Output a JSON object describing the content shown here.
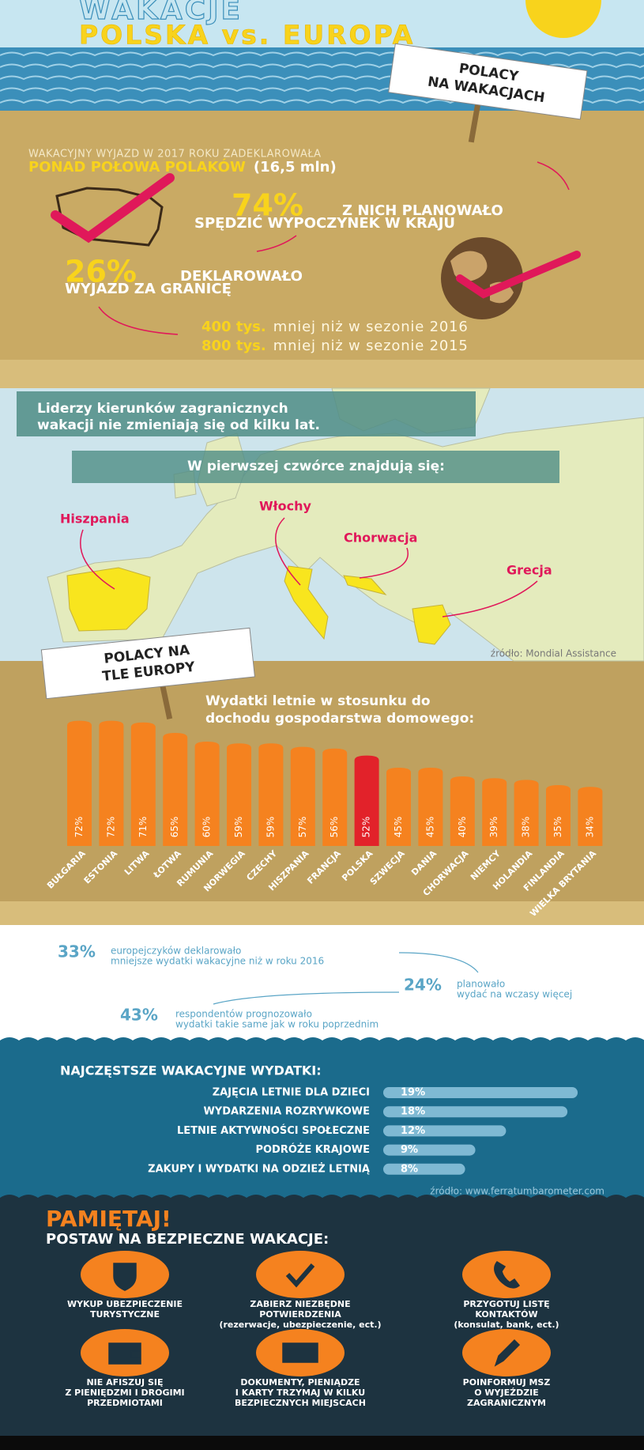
{
  "header": {
    "title": "WAKACJE",
    "subtitle": "POLSKA vs. EUROPA",
    "sign": [
      "POLACY",
      "NA WAKACJACH"
    ]
  },
  "poland": {
    "intro": "WAKACYJNY WYJAZD W 2017 ROKU ZADEKLAROWAŁA",
    "highlight": "PONAD POŁOWA POLAKÓW",
    "count": "(16,5 mln)",
    "domestic_pct": "74%",
    "domestic_text": [
      "Z NICH PLANOWAŁO",
      "SPĘDZIĆ WYPOCZYNEK W KRAJU"
    ],
    "abroad_pct": "26%",
    "abroad_text": [
      "DEKLAROWAŁO",
      "WYJAZD ZA GRANICĘ"
    ],
    "comparisons": [
      {
        "amount": "400 tys.",
        "text": "mniej niż w sezonie 2016"
      },
      {
        "amount": "800 tys.",
        "text": "mniej niż w sezonie 2015"
      }
    ]
  },
  "map": {
    "heading": [
      "Liderzy kierunków zagranicznych",
      "wakacji nie zmieniają się od kilku lat."
    ],
    "subheading": "W pierwszej czwórce znajdują się:",
    "countries": [
      "Hiszpania",
      "Włochy",
      "Chorwacja",
      "Grecja"
    ],
    "source": "źródło: Mondial Assistance"
  },
  "europe_sign": [
    "POLACY NA",
    "TLE EUROPY"
  ],
  "chart_data": [
    {
      "type": "bar",
      "title": [
        "Wydatki letnie w stosunku do",
        "dochodu gospodarstwa domowego:"
      ],
      "categories": [
        "BUŁGARIA",
        "ESTONIA",
        "LITWA",
        "ŁOTWA",
        "RUMUNIA",
        "NORWEGIA",
        "CZECHY",
        "HISZPANIA",
        "FRANCJA",
        "POLSKA",
        "SZWECJA",
        "DANIA",
        "CHORWACJA",
        "NIEMCY",
        "HOLANDIA",
        "FINLANDIA",
        "WIELKA BRYTANIA"
      ],
      "values": [
        72,
        72,
        71,
        65,
        60,
        59,
        59,
        57,
        56,
        52,
        45,
        45,
        40,
        39,
        38,
        35,
        34
      ],
      "value_labels": [
        "72%",
        "72%",
        "71%",
        "65%",
        "60%",
        "59%",
        "59%",
        "57%",
        "56%",
        "52%",
        "45%",
        "45%",
        "40%",
        "39%",
        "38%",
        "35%",
        "34%"
      ],
      "colors": [
        "#f5821f",
        "#f5821f",
        "#f5821f",
        "#f5821f",
        "#f5821f",
        "#f5821f",
        "#f5821f",
        "#f5821f",
        "#f5821f",
        "#e2222a",
        "#f5821f",
        "#f5821f",
        "#f5821f",
        "#f5821f",
        "#f5821f",
        "#f5821f",
        "#f5821f"
      ],
      "ylim": [
        0,
        75
      ]
    },
    {
      "type": "hbar",
      "title": "NAJCZĘSTSZE WAKACYJNE WYDATKI:",
      "categories": [
        "ZAJĘCIA LETNIE DLA DZIECI",
        "WYDARZENIA ROZRYWKOWE",
        "LETNIE AKTYWNOŚCI SPOŁECZNE",
        "PODRÓŻE KRAJOWE",
        "ZAKUPY I WYDATKI NA ODZIEŻ LETNIĄ"
      ],
      "values": [
        19,
        18,
        12,
        9,
        8
      ],
      "value_labels": [
        "19%",
        "18%",
        "12%",
        "9%",
        "8%"
      ],
      "color": "#7fb9d3",
      "xlim": [
        0,
        20
      ]
    }
  ],
  "stats": [
    {
      "pct": "33%",
      "text": [
        "europejczyków deklarowało",
        "mniejsze wydatki wakacyjne niż w roku 2016"
      ]
    },
    {
      "pct": "24%",
      "text": [
        "planowało",
        "wydać na wczasy więcej"
      ]
    },
    {
      "pct": "43%",
      "text": [
        "respondentów prognozowało",
        "wydatki takie same jak w roku poprzednim"
      ]
    }
  ],
  "spending_source": "źródło: www.ferratumbarometer.com",
  "tips": {
    "title": "PAMIĘTAJ!",
    "subtitle": "POSTAW NA BEZPIECZNE WAKACJE:",
    "items": [
      [
        "WYKUP UBEZPIECZENIE",
        "TURYSTYCZNE"
      ],
      [
        "ZABIERZ NIEZBĘDNE",
        "POTWIERDZENIA",
        "(rezerwacje, ubezpieczenie, ect.)"
      ],
      [
        "PRZYGOTUJ LISTĘ",
        "KONTAKTÓW",
        "(konsulat, bank, ect.)"
      ],
      [
        "NIE AFISZUJ SIĘ",
        "Z PIENIĘDZMI I DROGIMI",
        "PRZEDMIOTAMI"
      ],
      [
        "DOKUMENTY, PIENIĄDZE",
        "I KARTY TRZYMAJ W KILKU",
        "BEZPIECZNYCH MIEJSCACH"
      ],
      [
        "POINFORMUJ MSZ",
        "O WYJEŹDZIE",
        "ZAGRANICZNYM"
      ]
    ]
  }
}
